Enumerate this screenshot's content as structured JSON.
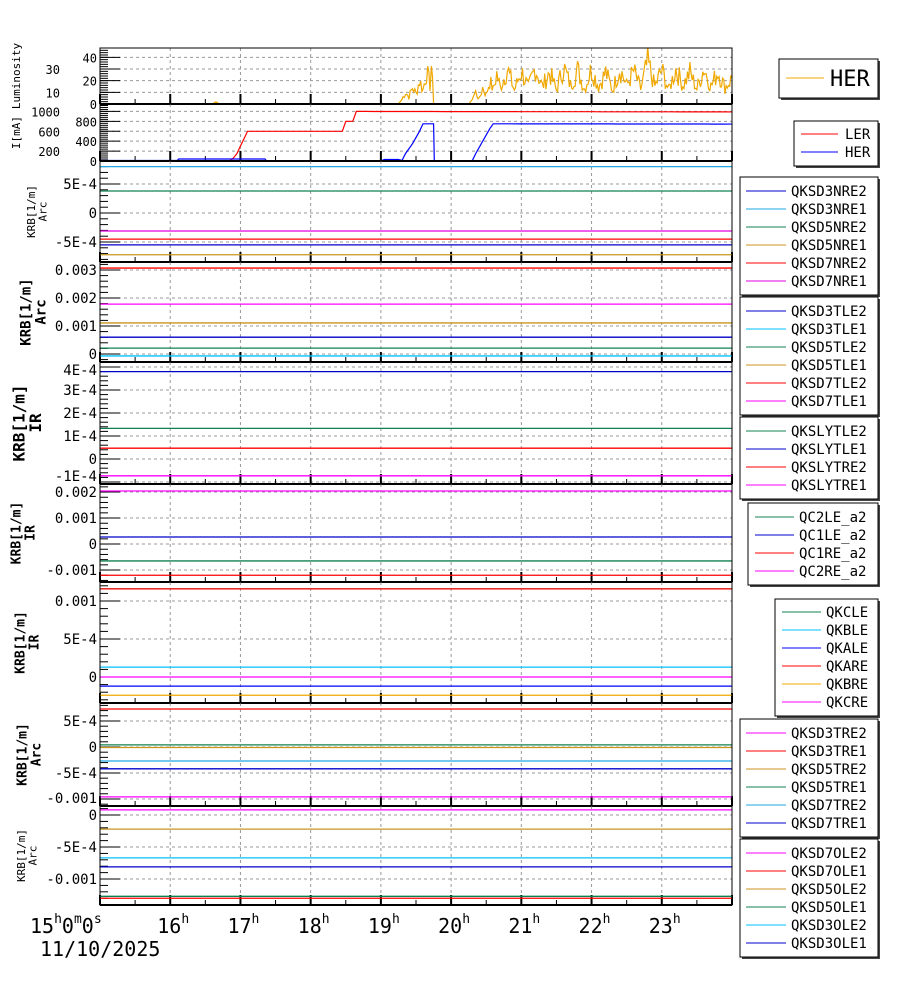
{
  "chart_data": [
    {
      "id": "luminosity",
      "type": "line",
      "ylabel": [
        "Luminosity"
      ],
      "ylim": [
        0,
        48
      ],
      "yticks": [
        {
          "v": 0,
          "label": "0"
        },
        {
          "v": 10,
          "label": "10"
        },
        {
          "v": 20,
          "label": "20"
        },
        {
          "v": 30,
          "label": "30"
        },
        {
          "v": 40,
          "label": "40"
        }
      ],
      "series": [
        {
          "name": "HER",
          "color": "#f0a800",
          "points": [
            [
              15,
              0
            ],
            [
              16.6,
              0
            ],
            [
              16.65,
              2
            ],
            [
              16.7,
              0
            ],
            [
              19.25,
              0
            ],
            [
              19.3,
              4
            ],
            [
              19.35,
              10
            ],
            [
              19.4,
              6
            ],
            [
              19.45,
              14
            ],
            [
              19.5,
              9
            ],
            [
              19.55,
              20
            ],
            [
              19.6,
              12
            ],
            [
              19.65,
              28
            ],
            [
              19.7,
              16
            ],
            [
              19.72,
              34
            ],
            [
              19.75,
              0
            ],
            [
              20.25,
              0
            ],
            [
              20.3,
              5
            ],
            [
              20.35,
              10
            ],
            [
              20.4,
              4
            ],
            [
              20.45,
              14
            ],
            [
              20.5,
              8
            ],
            [
              20.55,
              20
            ],
            [
              20.6,
              12
            ],
            [
              20.65,
              26
            ],
            [
              20.7,
              14
            ],
            [
              20.8,
              30
            ],
            [
              20.9,
              12
            ],
            [
              21.0,
              28
            ],
            [
              21.1,
              14
            ],
            [
              21.2,
              31
            ],
            [
              21.3,
              15
            ],
            [
              21.4,
              27
            ],
            [
              21.5,
              12
            ],
            [
              21.6,
              32
            ],
            [
              21.7,
              16
            ],
            [
              21.8,
              29
            ],
            [
              21.9,
              13
            ],
            [
              22.0,
              30
            ],
            [
              22.1,
              15
            ],
            [
              22.2,
              27
            ],
            [
              22.3,
              12
            ],
            [
              22.4,
              31
            ],
            [
              22.5,
              16
            ],
            [
              22.6,
              28
            ],
            [
              22.7,
              13
            ],
            [
              22.8,
              36
            ],
            [
              22.9,
              15
            ],
            [
              23.0,
              29
            ],
            [
              23.1,
              12
            ],
            [
              23.2,
              30
            ],
            [
              23.3,
              16
            ],
            [
              23.4,
              27
            ],
            [
              23.5,
              13
            ],
            [
              23.6,
              31
            ],
            [
              23.7,
              15
            ],
            [
              23.8,
              28
            ],
            [
              23.9,
              14
            ],
            [
              24.0,
              22
            ]
          ]
        }
      ],
      "legend": {
        "big": true,
        "entries": [
          0
        ]
      }
    },
    {
      "id": "current",
      "type": "line",
      "ylabel": [
        "I[mA]"
      ],
      "ylim": [
        0,
        1150
      ],
      "yticks": [
        {
          "v": 0,
          "label": "0"
        },
        {
          "v": 200,
          "label": "200"
        },
        {
          "v": 400,
          "label": "400"
        },
        {
          "v": 600,
          "label": "600"
        },
        {
          "v": 800,
          "label": "800"
        },
        {
          "v": 1000,
          "label": "1000"
        }
      ],
      "series": [
        {
          "name": "LER",
          "color": "#ff0000",
          "points": [
            [
              15,
              0
            ],
            [
              16.85,
              0
            ],
            [
              16.9,
              60
            ],
            [
              16.95,
              150
            ],
            [
              17.0,
              300
            ],
            [
              17.05,
              450
            ],
            [
              17.1,
              600
            ],
            [
              18.45,
              600
            ],
            [
              18.5,
              800
            ],
            [
              18.6,
              800
            ],
            [
              18.65,
              1000
            ],
            [
              24,
              990
            ]
          ]
        },
        {
          "name": "HER",
          "color": "#0000ff",
          "points": [
            [
              15,
              10
            ],
            [
              16.1,
              10
            ],
            [
              16.12,
              40
            ],
            [
              17.35,
              40
            ],
            [
              17.37,
              5
            ],
            [
              19.0,
              5
            ],
            [
              19.05,
              30
            ],
            [
              19.25,
              30
            ],
            [
              19.3,
              10
            ],
            [
              19.35,
              150
            ],
            [
              19.45,
              350
            ],
            [
              19.55,
              600
            ],
            [
              19.6,
              750
            ],
            [
              19.75,
              750
            ],
            [
              19.76,
              5
            ],
            [
              20.3,
              5
            ],
            [
              20.35,
              150
            ],
            [
              20.45,
              400
            ],
            [
              20.55,
              650
            ],
            [
              20.6,
              750
            ],
            [
              24,
              745
            ]
          ]
        }
      ]
    },
    {
      "id": "krb-arc-nre",
      "type": "line",
      "ylabel": [
        "KRB[1/m]",
        "Arc"
      ],
      "ylim": [
        -0.000845,
        0.000897
      ],
      "yticks": [
        {
          "v": 0.0005,
          "label": "5E-4"
        },
        {
          "v": 0,
          "label": "0"
        },
        {
          "v": -0.0005,
          "label": "-5E-4"
        }
      ],
      "series": [
        {
          "name": "QKSD3NRE2",
          "color": "#0000cc",
          "value": -0.00055
        },
        {
          "name": "QKSD3NRE1",
          "color": "#1ea8e0",
          "value": 0.0008
        },
        {
          "name": "QKSD5NRE2",
          "color": "#108050",
          "value": 0.00038
        },
        {
          "name": "QKSD5NRE1",
          "color": "#c8961e",
          "value": -0.00072
        },
        {
          "name": "QKSD7NRE2",
          "color": "#ff0000",
          "value": -0.00045
        },
        {
          "name": "QKSD7NRE1",
          "color": "#e000e0",
          "value": -0.00031
        }
      ]
    },
    {
      "id": "krb-arc-tle",
      "type": "line",
      "ylabel": [
        "KRB[1/m]",
        "Arc"
      ],
      "ylim": [
        -0.000286,
        0.003286
      ],
      "yticks": [
        {
          "v": 0.003,
          "label": "0.003"
        },
        {
          "v": 0.002,
          "label": "0.002"
        },
        {
          "v": 0.001,
          "label": "0.001"
        },
        {
          "v": 0,
          "label": "0"
        }
      ],
      "series": [
        {
          "name": "QKSD3TLE2",
          "color": "#0000cc",
          "value": 0.0006
        },
        {
          "name": "QKSD3TLE1",
          "color": "#00c0ff",
          "value": -7e-05
        },
        {
          "name": "QKSD5TLE2",
          "color": "#108050",
          "value": 0.00021
        },
        {
          "name": "QKSD5TLE1",
          "color": "#c8961e",
          "value": 0.00111
        },
        {
          "name": "QKSD7TLE2",
          "color": "#ff0000",
          "value": 0.00307
        },
        {
          "name": "QKSD7TLE1",
          "color": "#ff00ff",
          "value": 0.00178
        }
      ]
    },
    {
      "id": "krb-ir-sly",
      "type": "line",
      "ylabel": [
        "KRB[1/m]",
        "IR"
      ],
      "ylim": [
        -0.0001087,
        0.0004217
      ],
      "yticks": [
        {
          "v": 0.0004,
          "label": "4E-4"
        },
        {
          "v": 0.0003,
          "label": "3E-4"
        },
        {
          "v": 0.0002,
          "label": "2E-4"
        },
        {
          "v": 0.0001,
          "label": "1E-4"
        },
        {
          "v": 0,
          "label": "0"
        },
        {
          "v": -0.0001,
          "label": "-1E-4"
        }
      ],
      "series": [
        {
          "name": "QKSLYTLE2",
          "color": "#108050",
          "value": 0.000133
        },
        {
          "name": "QKSLYTLE1",
          "color": "#0000cc",
          "value": 0.00038
        },
        {
          "name": "QKSLYTRE2",
          "color": "#ff0000",
          "value": 4.7e-05
        },
        {
          "name": "QKSLYTRE1",
          "color": "#ff00ff",
          "value": -7.3e-05
        }
      ]
    },
    {
      "id": "krb-ir-qc",
      "type": "line",
      "ylabel": [
        "KRB[1/m]",
        "IR"
      ],
      "ylim": [
        -0.00146,
        0.00231
      ],
      "yticks": [
        {
          "v": 0.002,
          "label": "0.002"
        },
        {
          "v": 0.001,
          "label": "0.001"
        },
        {
          "v": 0,
          "label": "0"
        },
        {
          "v": -0.001,
          "label": "-0.001"
        }
      ],
      "series": [
        {
          "name": "QC2LE_a2",
          "color": "#108050",
          "value": -0.00065
        },
        {
          "name": "QC1LE_a2",
          "color": "#0000cc",
          "value": 0.00027
        },
        {
          "name": "QC1RE_a2",
          "color": "#ff0000",
          "value": -0.0012
        },
        {
          "name": "QC2RE_a2",
          "color": "#ff00ff",
          "value": 0.00204
        }
      ]
    },
    {
      "id": "krb-ir-qk",
      "type": "line",
      "ylabel": [
        "KRB[1/m]",
        "IR"
      ],
      "ylim": [
        -0.000342,
        0.00125
      ],
      "yticks": [
        {
          "v": 0.001,
          "label": "0.001"
        },
        {
          "v": 0.0005,
          "label": "5E-4"
        },
        {
          "v": 0,
          "label": "0"
        }
      ],
      "series": [
        {
          "name": "QKCLE",
          "color": "#108050",
          "value": 0.00116
        },
        {
          "name": "QKBLE",
          "color": "#00c0ff",
          "value": 0.00013
        },
        {
          "name": "QKALE",
          "color": "#0000ff",
          "value": -0.00012
        },
        {
          "name": "QKARE",
          "color": "#ff0000",
          "value": 0.00116
        },
        {
          "name": "QKBRE",
          "color": "#f0a800",
          "value": -0.00024
        },
        {
          "name": "QKCRE",
          "color": "#ff00ff",
          "value": 0
        }
      ]
    },
    {
      "id": "krb-arc-tre",
      "type": "line",
      "ylabel": [
        "KRB[1/m]",
        "Arc"
      ],
      "ylim": [
        -0.001135,
        0.000846
      ],
      "yticks": [
        {
          "v": 0.0005,
          "label": "5E-4"
        },
        {
          "v": 0,
          "label": "0"
        },
        {
          "v": -0.0005,
          "label": "-5E-4"
        },
        {
          "v": -0.001,
          "label": "-0.001"
        }
      ],
      "series": [
        {
          "name": "QKSD3TRE2",
          "color": "#ff00ff",
          "value": -0.00096
        },
        {
          "name": "QKSD3TRE1",
          "color": "#ff0000",
          "value": 0.00073
        },
        {
          "name": "QKSD5TRE2",
          "color": "#c8961e",
          "value": -1e-05
        },
        {
          "name": "QKSD5TRE1",
          "color": "#108050",
          "value": 4e-05
        },
        {
          "name": "QKSD7TRE2",
          "color": "#1ea8e0",
          "value": -0.00027
        },
        {
          "name": "QKSD7TRE1",
          "color": "#0000cc",
          "value": -0.00042
        }
      ]
    },
    {
      "id": "krb-arc-ole",
      "type": "line",
      "ylabel": [
        "KRB[1/m]",
        "Arc"
      ],
      "ylim": [
        -0.001406,
        0.000141
      ],
      "yticks": [
        {
          "v": 0,
          "label": "0"
        },
        {
          "v": -0.0005,
          "label": "-5E-4"
        },
        {
          "v": -0.001,
          "label": "-0.001"
        }
      ],
      "series": [
        {
          "name": "QKSD7OLE2",
          "color": "#ff00ff",
          "value": 8e-05
        },
        {
          "name": "QKSD7OLE1",
          "color": "#ff0000",
          "value": -0.0013
        },
        {
          "name": "QKSD5OLE2",
          "color": "#c8961e",
          "value": -0.00022
        },
        {
          "name": "QKSD5OLE1",
          "color": "#108050",
          "value": -0.00127
        },
        {
          "name": "QKSD3OLE2",
          "color": "#00c0ff",
          "value": -0.00067
        },
        {
          "name": "QKSD3OLE1",
          "color": "#0000cc",
          "value": -0.00081
        }
      ]
    }
  ],
  "xaxis": {
    "range_hours": [
      15,
      24
    ],
    "ticks": [
      {
        "h": 15,
        "label": "15",
        "sup": "h",
        "extra": "0",
        "extra_sup": "m",
        "extra2": "0",
        "extra2_sup": "s"
      },
      {
        "h": 16,
        "label": "16",
        "sup": "h"
      },
      {
        "h": 17,
        "label": "17",
        "sup": "h"
      },
      {
        "h": 18,
        "label": "18",
        "sup": "h"
      },
      {
        "h": 19,
        "label": "19",
        "sup": "h"
      },
      {
        "h": 20,
        "label": "20",
        "sup": "h"
      },
      {
        "h": 21,
        "label": "21",
        "sup": "h"
      },
      {
        "h": 22,
        "label": "22",
        "sup": "h"
      },
      {
        "h": 23,
        "label": "23",
        "sup": "h"
      }
    ],
    "date": "11/10/2025"
  }
}
